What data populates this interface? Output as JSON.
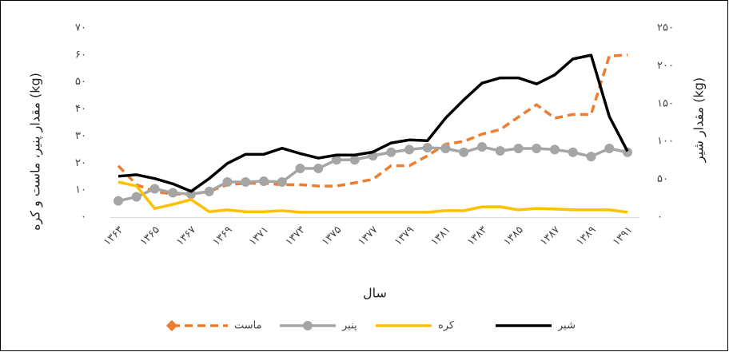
{
  "chart_data": {
    "type": "line",
    "x_label": "سال",
    "y_label": "مقدار پنیر، ماست و کره (kg)",
    "y2_label": "مقدار شیر (kg)",
    "categories": [
      "۱۳۶۳",
      null,
      "۱۳۶۵",
      null,
      "۱۳۶۷",
      null,
      "۱۳۶۹",
      null,
      "۱۳۷۱",
      null,
      "۱۳۷۳",
      null,
      "۱۳۷۵",
      null,
      "۱۳۷۷",
      null,
      "۱۳۷۹",
      null,
      "۱۳۸۱",
      null,
      "۱۳۸۳",
      null,
      "۱۳۸۵",
      null,
      "۱۳۸۷",
      null,
      "۱۳۸۹",
      null,
      "۱۳۹۱"
    ],
    "ylim": [
      0,
      70
    ],
    "yticks": [
      {
        "value": 0,
        "label": "۰"
      },
      {
        "value": 10,
        "label": "۱۰"
      },
      {
        "value": 20,
        "label": "۲۰"
      },
      {
        "value": 30,
        "label": "۳۰"
      },
      {
        "value": 40,
        "label": "۴۰"
      },
      {
        "value": 50,
        "label": "۵۰"
      },
      {
        "value": 60,
        "label": "۶۰"
      },
      {
        "value": 70,
        "label": "۷۰"
      }
    ],
    "y2lim": [
      0,
      250
    ],
    "y2ticks": [
      {
        "value": 0,
        "label": "۰"
      },
      {
        "value": 50,
        "label": "۵۰"
      },
      {
        "value": 100,
        "label": "۱۰۰"
      },
      {
        "value": 150,
        "label": "۱۵۰"
      },
      {
        "value": 200,
        "label": "۲۰۰"
      },
      {
        "value": 250,
        "label": "۲۵۰"
      }
    ],
    "legend": "bottom",
    "series": [
      {
        "name": "ماست",
        "color": "#ED7D31",
        "dash": true,
        "marker": "diamond",
        "values": [
          19,
          12,
          9.5,
          8.5,
          8.5,
          9.5,
          12,
          12.5,
          12.5,
          12,
          12,
          11.5,
          11.5,
          12.7,
          14,
          19,
          19,
          22.7,
          27,
          28,
          30.7,
          32.4,
          37,
          41.6,
          36.6,
          38,
          38,
          59.6,
          60
        ]
      },
      {
        "name": "پنیر",
        "color": "#A5A5A5",
        "marker": "circle",
        "values": [
          6,
          7.5,
          10.5,
          9,
          8.5,
          9.5,
          13,
          13,
          13.3,
          13,
          18,
          18,
          21.2,
          21.2,
          22.7,
          24,
          25,
          25.7,
          25.4,
          24,
          26,
          24.5,
          25.4,
          25.4,
          25,
          24,
          22.4,
          25.4,
          24
        ]
      },
      {
        "name": "کره",
        "color": "#FFC000",
        "values": [
          13,
          11.5,
          3.2,
          4.7,
          6.5,
          2,
          2.7,
          2,
          2,
          2.4,
          1.8,
          1.8,
          1.8,
          1.8,
          1.8,
          1.8,
          1.8,
          1.8,
          2.4,
          2.4,
          3.8,
          3.8,
          2.7,
          3.2,
          3,
          2.7,
          2.7,
          2.7,
          1.8
        ]
      },
      {
        "name": "شیر",
        "color": "#000000",
        "axis": "y2",
        "values": [
          54,
          56,
          51,
          44,
          34,
          51,
          71,
          83,
          83,
          91,
          84,
          78,
          82,
          82,
          86,
          98,
          102,
          101,
          131,
          155,
          177,
          184,
          184,
          176,
          188,
          209,
          214,
          133,
          87
        ]
      }
    ]
  }
}
